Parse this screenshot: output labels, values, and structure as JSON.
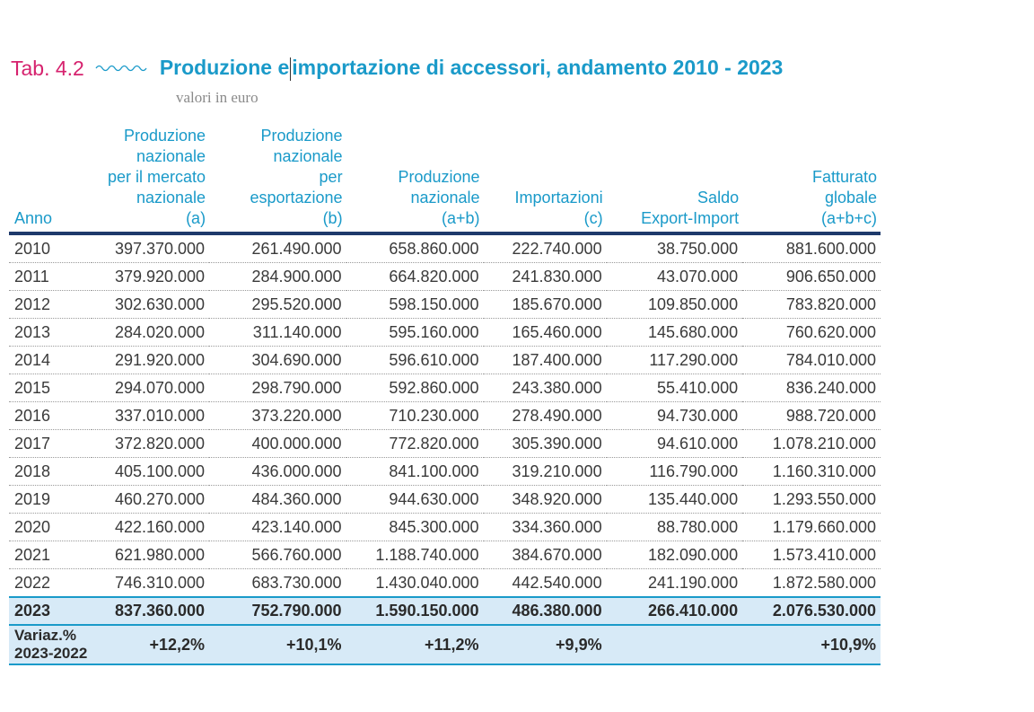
{
  "header": {
    "tab_label": "Tab. 4.2",
    "title_part1": "Produzione e",
    "title_part2": "importazione di accessori, andamento 2010 - 2023",
    "subtitle": "valori in euro"
  },
  "colors": {
    "tab": "#d6226e",
    "title": "#1a9ac9",
    "rule": "#1e3a6b",
    "highlight": "#d7eaf7"
  },
  "columns": [
    [
      "Anno"
    ],
    [
      "Produzione",
      "nazionale",
      "per il mercato",
      "nazionale",
      "(a)"
    ],
    [
      "Produzione",
      "nazionale",
      "per",
      "esportazione",
      "(b)"
    ],
    [
      "Produzione",
      "nazionale",
      "(a+b)"
    ],
    [
      "Importazioni",
      "(c)"
    ],
    [
      "Saldo",
      "Export-Import"
    ],
    [
      "Fatturato",
      "globale",
      "(a+b+c)"
    ]
  ],
  "rows": [
    [
      "2010",
      "397.370.000",
      "261.490.000",
      "658.860.000",
      "222.740.000",
      "38.750.000",
      "881.600.000"
    ],
    [
      "2011",
      "379.920.000",
      "284.900.000",
      "664.820.000",
      "241.830.000",
      "43.070.000",
      "906.650.000"
    ],
    [
      "2012",
      "302.630.000",
      "295.520.000",
      "598.150.000",
      "185.670.000",
      "109.850.000",
      "783.820.000"
    ],
    [
      "2013",
      "284.020.000",
      "311.140.000",
      "595.160.000",
      "165.460.000",
      "145.680.000",
      "760.620.000"
    ],
    [
      "2014",
      "291.920.000",
      "304.690.000",
      "596.610.000",
      "187.400.000",
      "117.290.000",
      "784.010.000"
    ],
    [
      "2015",
      "294.070.000",
      "298.790.000",
      "592.860.000",
      "243.380.000",
      "55.410.000",
      "836.240.000"
    ],
    [
      "2016",
      "337.010.000",
      "373.220.000",
      "710.230.000",
      "278.490.000",
      "94.730.000",
      "988.720.000"
    ],
    [
      "2017",
      "372.820.000",
      "400.000.000",
      "772.820.000",
      "305.390.000",
      "94.610.000",
      "1.078.210.000"
    ],
    [
      "2018",
      "405.100.000",
      "436.000.000",
      "841.100.000",
      "319.210.000",
      "116.790.000",
      "1.160.310.000"
    ],
    [
      "2019",
      "460.270.000",
      "484.360.000",
      "944.630.000",
      "348.920.000",
      "135.440.000",
      "1.293.550.000"
    ],
    [
      "2020",
      "422.160.000",
      "423.140.000",
      "845.300.000",
      "334.360.000",
      "88.780.000",
      "1.179.660.000"
    ],
    [
      "2021",
      "621.980.000",
      "566.760.000",
      "1.188.740.000",
      "384.670.000",
      "182.090.000",
      "1.573.410.000"
    ],
    [
      "2022",
      "746.310.000",
      "683.730.000",
      "1.430.040.000",
      "442.540.000",
      "241.190.000",
      "1.872.580.000"
    ]
  ],
  "highlight_row": [
    "2023",
    "837.360.000",
    "752.790.000",
    "1.590.150.000",
    "486.380.000",
    "266.410.000",
    "2.076.530.000"
  ],
  "variation_row": {
    "label_lines": [
      "Variaz.%",
      "2023-2022"
    ],
    "values": [
      "+12,2%",
      "+10,1%",
      "+11,2%",
      "+9,9%",
      "",
      "+10,9%"
    ]
  }
}
